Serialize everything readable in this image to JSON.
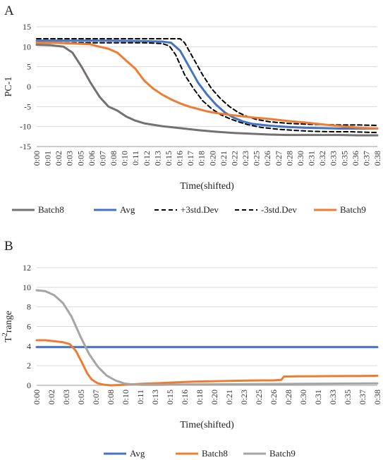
{
  "chart_data": [
    {
      "panel_label": "A",
      "type": "line",
      "ylabel": "PC-1",
      "xlabel": "Time(shifted)",
      "ylim": [
        -15,
        15
      ],
      "yticks": [
        15,
        10,
        5,
        0,
        -5,
        -10,
        -15
      ],
      "xlim": [
        0,
        38
      ],
      "x_tick_labels": [
        "0:00",
        "0:01",
        "0:02",
        "0:03",
        "0:05",
        "0:06",
        "0:07",
        "0:08",
        "0:10",
        "0:11",
        "0:12",
        "0:13",
        "0:15",
        "0:16",
        "0:17",
        "0:18",
        "0:20",
        "0:21",
        "0:22",
        "0:23",
        "0:25",
        "0:26",
        "0:27",
        "0:28",
        "0:30",
        "0:31",
        "0:32",
        "0:33",
        "0:35",
        "0:36",
        "0:37",
        "0:38"
      ],
      "grid": "horizontal",
      "legend_position": "bottom",
      "series": [
        {
          "name": "Batch8",
          "color": "#767171",
          "dash": "solid",
          "points": [
            [
              0,
              10.5
            ],
            [
              1.5,
              10.4
            ],
            [
              3,
              10
            ],
            [
              4,
              8.5
            ],
            [
              5,
              5
            ],
            [
              6,
              1
            ],
            [
              7,
              -2.5
            ],
            [
              8,
              -5
            ],
            [
              9,
              -6
            ],
            [
              10,
              -7.5
            ],
            [
              11,
              -8.5
            ],
            [
              12,
              -9.2
            ],
            [
              14,
              -9.9
            ],
            [
              16,
              -10.4
            ],
            [
              18,
              -10.9
            ],
            [
              20,
              -11.3
            ],
            [
              22,
              -11.6
            ],
            [
              24,
              -11.8
            ],
            [
              26,
              -12
            ],
            [
              28,
              -12.1
            ],
            [
              30,
              -12.1
            ],
            [
              32,
              -12.1
            ],
            [
              34,
              -12.1
            ],
            [
              36,
              -12.2
            ],
            [
              38,
              -12.2
            ]
          ]
        },
        {
          "name": "Avg",
          "color": "#4472c4",
          "dash": "solid",
          "points": [
            [
              0,
              11.5
            ],
            [
              4,
              11.5
            ],
            [
              8,
              11.5
            ],
            [
              12,
              11.4
            ],
            [
              14,
              11.3
            ],
            [
              15,
              11
            ],
            [
              16,
              9
            ],
            [
              17,
              5
            ],
            [
              18,
              1
            ],
            [
              19,
              -2
            ],
            [
              20,
              -4.5
            ],
            [
              21,
              -6.5
            ],
            [
              22,
              -7.8
            ],
            [
              23,
              -8.7
            ],
            [
              24,
              -9.3
            ],
            [
              26,
              -9.8
            ],
            [
              28,
              -10.1
            ],
            [
              30,
              -10.3
            ],
            [
              32,
              -10.4
            ],
            [
              34,
              -10.5
            ],
            [
              36,
              -10.5
            ],
            [
              38,
              -10.5
            ]
          ]
        },
        {
          "name": "+3std.Dev",
          "color": "#000000",
          "dash": "dashed",
          "points": [
            [
              0,
              12
            ],
            [
              4,
              12
            ],
            [
              8,
              12
            ],
            [
              12,
              12
            ],
            [
              15,
              12
            ],
            [
              16,
              12
            ],
            [
              16.5,
              11
            ],
            [
              17.5,
              7
            ],
            [
              18.5,
              3
            ],
            [
              19.5,
              -0.5
            ],
            [
              20.5,
              -3
            ],
            [
              21.5,
              -5
            ],
            [
              22.5,
              -6.5
            ],
            [
              23.5,
              -7.5
            ],
            [
              24.5,
              -8.2
            ],
            [
              26,
              -8.8
            ],
            [
              28,
              -9.2
            ],
            [
              30,
              -9.4
            ],
            [
              32,
              -9.5
            ],
            [
              34,
              -9.6
            ],
            [
              36,
              -9.6
            ],
            [
              38,
              -9.7
            ]
          ]
        },
        {
          "name": "-3std.Dev",
          "color": "#000000",
          "dash": "dashed",
          "points": [
            [
              0,
              11
            ],
            [
              4,
              11
            ],
            [
              8,
              11
            ],
            [
              12,
              11
            ],
            [
              14,
              10.8
            ],
            [
              14.8,
              10.2
            ],
            [
              15.5,
              8
            ],
            [
              16.5,
              3
            ],
            [
              17.5,
              -0.5
            ],
            [
              18.5,
              -3.5
            ],
            [
              19.5,
              -5.5
            ],
            [
              20.5,
              -7
            ],
            [
              21.5,
              -8
            ],
            [
              22.5,
              -8.8
            ],
            [
              23.5,
              -9.5
            ],
            [
              25,
              -10.2
            ],
            [
              27,
              -10.7
            ],
            [
              29,
              -11
            ],
            [
              31,
              -11.2
            ],
            [
              33,
              -11.3
            ],
            [
              35,
              -11.3
            ],
            [
              38,
              -11.5
            ]
          ]
        },
        {
          "name": "Batch9",
          "color": "#ed7d31",
          "dash": "solid",
          "points": [
            [
              0,
              11
            ],
            [
              2,
              11
            ],
            [
              4,
              10.8
            ],
            [
              6,
              10.6
            ],
            [
              7,
              10
            ],
            [
              8,
              9.5
            ],
            [
              9,
              8.5
            ],
            [
              10,
              6.5
            ],
            [
              11,
              4.5
            ],
            [
              12,
              1.5
            ],
            [
              13,
              -0.5
            ],
            [
              14,
              -2
            ],
            [
              15,
              -3.2
            ],
            [
              16,
              -4.2
            ],
            [
              17,
              -5
            ],
            [
              18,
              -5.6
            ],
            [
              19,
              -6.2
            ],
            [
              20,
              -6.6
            ],
            [
              22,
              -7.2
            ],
            [
              24,
              -7.7
            ],
            [
              26,
              -8.1
            ],
            [
              28,
              -8.6
            ],
            [
              30,
              -9
            ],
            [
              32,
              -9.5
            ],
            [
              34,
              -9.9
            ],
            [
              36,
              -10.3
            ],
            [
              38,
              -10.5
            ]
          ]
        }
      ]
    },
    {
      "panel_label": "B",
      "type": "line",
      "ylabel": "T²range",
      "ylabel_main": "T",
      "ylabel_sup": "2",
      "ylabel_rest": "range",
      "xlabel": "Time(shifted)",
      "ylim": [
        0,
        12
      ],
      "yticks": [
        12,
        10,
        8,
        6,
        4,
        2,
        0
      ],
      "xlim": [
        0,
        39
      ],
      "x_tick_labels": [
        "0:00",
        "0:02",
        "0:03",
        "0:05",
        "0:07",
        "0:08",
        "0:10",
        "0:11",
        "0:13",
        "0:15",
        "0:16",
        "0:18",
        "0:20",
        "0:21",
        "0:23",
        "0:25",
        "0:26",
        "0:28",
        "0:30",
        "0:31",
        "0:33",
        "0:35",
        "0:37",
        "0:38"
      ],
      "grid": "horizontal",
      "legend_position": "bottom",
      "series": [
        {
          "name": "Avg",
          "color": "#4472c4",
          "dash": "solid",
          "points": [
            [
              0,
              3.9
            ],
            [
              39,
              3.9
            ]
          ]
        },
        {
          "name": "Batch8",
          "color": "#ed7d31",
          "dash": "solid",
          "points": [
            [
              0,
              4.6
            ],
            [
              1,
              4.6
            ],
            [
              2,
              4.5
            ],
            [
              3,
              4.4
            ],
            [
              3.8,
              4.2
            ],
            [
              4.5,
              3.5
            ],
            [
              5.2,
              2.3
            ],
            [
              5.8,
              1.2
            ],
            [
              6.3,
              0.6
            ],
            [
              7,
              0.2
            ],
            [
              7.8,
              0.05
            ],
            [
              8.5,
              0
            ],
            [
              10,
              0.05
            ],
            [
              12,
              0.15
            ],
            [
              14,
              0.22
            ],
            [
              16,
              0.3
            ],
            [
              18,
              0.38
            ],
            [
              20,
              0.42
            ],
            [
              22,
              0.45
            ],
            [
              24,
              0.48
            ],
            [
              26,
              0.5
            ],
            [
              27,
              0.5
            ],
            [
              28,
              0.55
            ],
            [
              28.3,
              0.9
            ],
            [
              30,
              0.92
            ],
            [
              32,
              0.93
            ],
            [
              34,
              0.94
            ],
            [
              36,
              0.95
            ],
            [
              38,
              0.96
            ],
            [
              39,
              0.98
            ]
          ]
        },
        {
          "name": "Batch9",
          "color": "#a5a5a5",
          "dash": "solid",
          "points": [
            [
              0,
              9.7
            ],
            [
              1,
              9.6
            ],
            [
              2,
              9.2
            ],
            [
              3,
              8.4
            ],
            [
              4,
              7
            ],
            [
              5,
              5
            ],
            [
              6,
              3.2
            ],
            [
              7,
              1.9
            ],
            [
              8,
              1
            ],
            [
              9,
              0.5
            ],
            [
              10,
              0.2
            ],
            [
              11,
              0.08
            ],
            [
              12,
              0.05
            ],
            [
              14,
              0.05
            ],
            [
              16,
              0.08
            ],
            [
              20,
              0.1
            ],
            [
              25,
              0.12
            ],
            [
              30,
              0.15
            ],
            [
              35,
              0.18
            ],
            [
              39,
              0.2
            ]
          ]
        }
      ]
    }
  ]
}
